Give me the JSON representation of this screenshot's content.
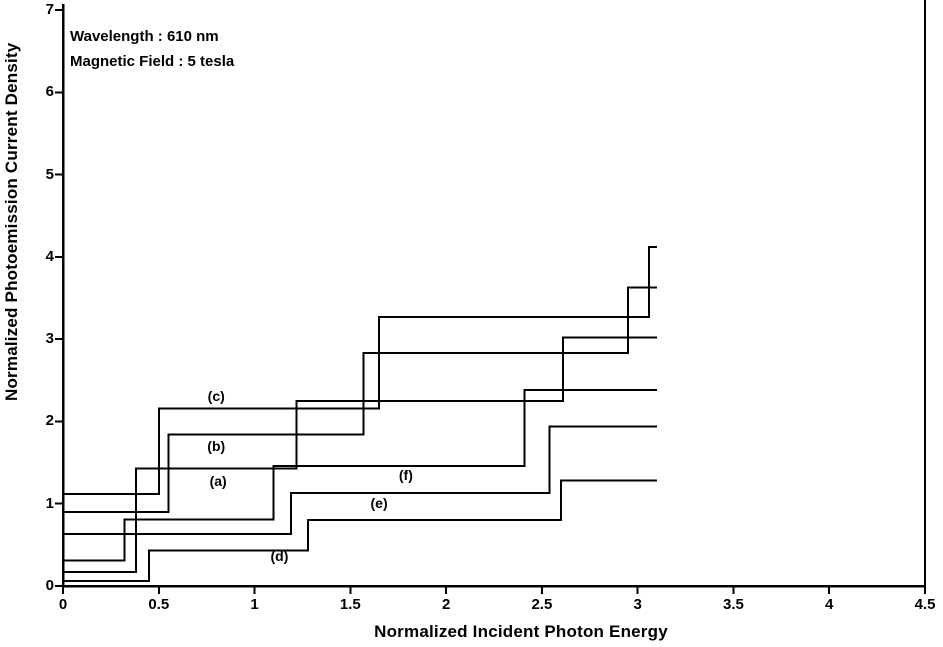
{
  "page": {
    "background": "#ffffff",
    "foreground": "#000000"
  },
  "chart_data": {
    "type": "line",
    "subtype": "step",
    "title": "",
    "xlabel": "Normalized Incident Photon Energy",
    "ylabel": "Normalized Photoemission Current Density",
    "xlim": [
      0,
      4.5
    ],
    "ylim": [
      0,
      7
    ],
    "grid": false,
    "line_color": "#000000",
    "annotations": [
      "Wavelength : 610 nm",
      "Magnetic Field : 5 tesla"
    ],
    "x_ticks": [
      0,
      0.5,
      1,
      1.5,
      2,
      2.5,
      3,
      3.5,
      4,
      4.5
    ],
    "x_tick_labels": [
      "0",
      "0.5",
      "1",
      "1.5",
      "2",
      "2.5",
      "3",
      "3.5",
      "4",
      "4.5"
    ],
    "y_ticks": [
      0,
      1,
      2,
      3,
      4,
      5,
      6,
      7
    ],
    "y_tick_labels": [
      "0",
      "1",
      "2",
      "3",
      "4",
      "5",
      "6",
      "7"
    ],
    "series": [
      {
        "name": "(a)",
        "label_pos": [
          0.81,
          1.27
        ],
        "points": [
          [
            0,
            0.17
          ],
          [
            0.38,
            0.17
          ],
          [
            0.38,
            1.43
          ],
          [
            1.22,
            1.43
          ],
          [
            1.22,
            2.25
          ],
          [
            2.61,
            2.25
          ],
          [
            2.61,
            3.02
          ],
          [
            3.1,
            3.02
          ]
        ]
      },
      {
        "name": "(b)",
        "label_pos": [
          0.8,
          1.7
        ],
        "points": [
          [
            0,
            0.9
          ],
          [
            0.55,
            0.9
          ],
          [
            0.55,
            1.84
          ],
          [
            1.57,
            1.84
          ],
          [
            1.57,
            2.83
          ],
          [
            2.95,
            2.83
          ],
          [
            2.95,
            3.63
          ],
          [
            3.1,
            3.63
          ]
        ]
      },
      {
        "name": "(c)",
        "label_pos": [
          0.8,
          2.31
        ],
        "points": [
          [
            0,
            1.12
          ],
          [
            0.5,
            1.12
          ],
          [
            0.5,
            2.16
          ],
          [
            1.65,
            2.16
          ],
          [
            1.65,
            3.27
          ],
          [
            3.06,
            3.27
          ],
          [
            3.06,
            4.12
          ],
          [
            3.1,
            4.12
          ]
        ]
      },
      {
        "name": "(d)",
        "label_pos": [
          1.13,
          0.37
        ],
        "points": [
          [
            0,
            0.06
          ],
          [
            0.45,
            0.06
          ],
          [
            0.45,
            0.43
          ],
          [
            1.28,
            0.43
          ],
          [
            1.28,
            0.8
          ],
          [
            2.6,
            0.8
          ],
          [
            2.6,
            1.28
          ],
          [
            3.1,
            1.28
          ]
        ]
      },
      {
        "name": "(e)",
        "label_pos": [
          1.65,
          1.01
        ],
        "points": [
          [
            0,
            0.63
          ],
          [
            1.19,
            0.63
          ],
          [
            1.19,
            1.13
          ],
          [
            2.54,
            1.13
          ],
          [
            2.54,
            1.94
          ],
          [
            3.1,
            1.94
          ]
        ]
      },
      {
        "name": "(f)",
        "label_pos": [
          1.79,
          1.35
        ],
        "points": [
          [
            0,
            0.31
          ],
          [
            0.32,
            0.31
          ],
          [
            0.32,
            0.81
          ],
          [
            1.1,
            0.81
          ],
          [
            1.1,
            1.46
          ],
          [
            2.41,
            1.46
          ],
          [
            2.41,
            2.38
          ],
          [
            3.1,
            2.38
          ]
        ]
      }
    ]
  }
}
